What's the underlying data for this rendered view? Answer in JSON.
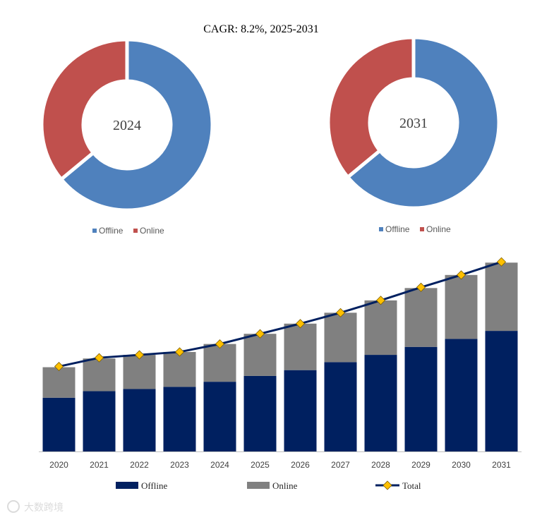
{
  "header": {
    "cagr_text": "CAGR:   8.2%, 2025-2031"
  },
  "watermark": {
    "text": "大数跨境"
  },
  "colors": {
    "offline_donut": "#4f81bd",
    "online_donut": "#c0504d",
    "offline_bar": "#002060",
    "online_bar": "#808080",
    "total_line": "#002060",
    "total_marker": "#ffc000",
    "axis": "#bfbfbf"
  },
  "chart_data": [
    {
      "type": "pie",
      "title": "2024",
      "labels": [
        "Offline",
        "Online"
      ],
      "values": [
        64,
        36
      ],
      "legend": [
        "Offline",
        "Online"
      ],
      "legend_position": "bottom"
    },
    {
      "type": "pie",
      "title": "2031",
      "labels": [
        "Offline",
        "Online"
      ],
      "values": [
        64,
        36
      ],
      "legend": [
        "Offline",
        "Online"
      ],
      "legend_position": "bottom"
    },
    {
      "type": "bar",
      "stacked": true,
      "categories": [
        "2020",
        "2021",
        "2022",
        "2023",
        "2024",
        "2025",
        "2026",
        "2027",
        "2028",
        "2029",
        "2030",
        "2031"
      ],
      "series": [
        {
          "name": "Offline",
          "values": [
            74,
            83,
            86,
            89,
            96,
            104,
            112,
            123,
            133,
            144,
            155,
            166
          ]
        },
        {
          "name": "Online",
          "values": [
            42,
            45,
            47,
            48,
            52,
            58,
            64,
            68,
            75,
            81,
            88,
            94
          ]
        }
      ],
      "line_series": {
        "name": "Total",
        "values": [
          117,
          129,
          133,
          137,
          148,
          162,
          176,
          191,
          208,
          226,
          243,
          261
        ]
      },
      "ylim": [
        0,
        270
      ],
      "legend": [
        "Offline",
        "Online",
        "Total"
      ],
      "legend_position": "bottom",
      "grid": false
    }
  ]
}
